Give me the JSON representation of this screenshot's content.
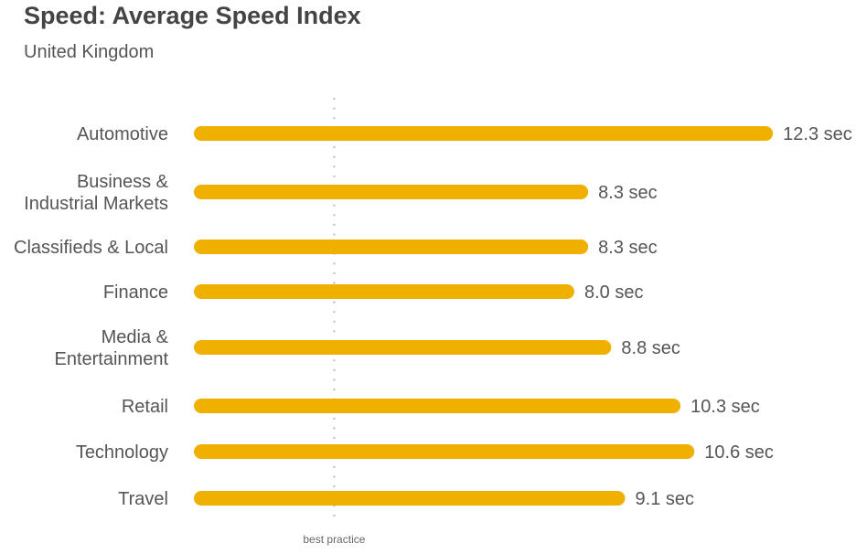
{
  "chart_data": {
    "type": "bar",
    "orientation": "horizontal",
    "title": "Speed: Average Speed Index",
    "subtitle": "United Kingdom",
    "categories": [
      [
        "Automotive"
      ],
      [
        "Business &",
        "Industrial Markets"
      ],
      [
        "Classifieds & Local"
      ],
      [
        "Finance"
      ],
      [
        "Media &",
        "Entertainment"
      ],
      [
        "Retail"
      ],
      [
        "Technology"
      ],
      [
        "Travel"
      ]
    ],
    "values": [
      12.3,
      8.3,
      8.3,
      8.0,
      8.8,
      10.3,
      10.6,
      9.1
    ],
    "value_labels": [
      "12.3 sec",
      "8.3 sec",
      "8.3 sec",
      "8.0 sec",
      "8.8 sec",
      "10.3 sec",
      "10.6 sec",
      "9.1 sec"
    ],
    "unit": "sec",
    "reference_line": {
      "label": "best practice",
      "value": 2.8,
      "style": "dotted"
    },
    "bar_color": "#F0B000",
    "grid": false,
    "legend": "none"
  }
}
